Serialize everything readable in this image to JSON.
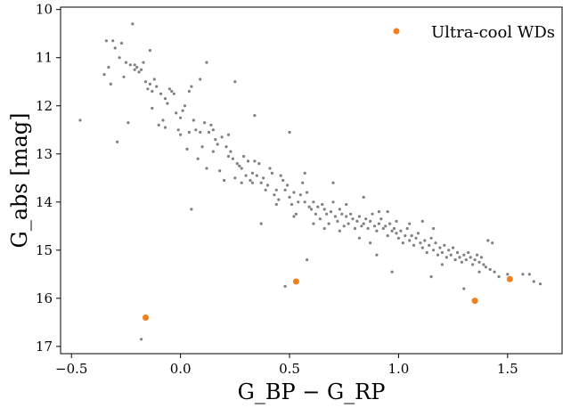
{
  "chart_data": {
    "type": "scatter",
    "title": "",
    "xlabel": "G_BP − G_RP",
    "ylabel": "G_abs [mag]",
    "xlim": [
      -0.55,
      1.75
    ],
    "ylim": [
      17.15,
      9.95
    ],
    "y_inverted": true,
    "x_ticks": [
      -0.5,
      0.0,
      0.5,
      1.0,
      1.5
    ],
    "x_tick_labels": [
      "−0.5",
      "0.0",
      "0.5",
      "1.0",
      "1.5"
    ],
    "y_ticks": [
      10,
      11,
      12,
      13,
      14,
      15,
      16,
      17
    ],
    "y_tick_labels": [
      "10",
      "11",
      "12",
      "13",
      "14",
      "15",
      "16",
      "17"
    ],
    "grid": false,
    "legend_position": "top-right",
    "series": [
      {
        "color": "#808080",
        "points": [
          [
            -0.46,
            12.3
          ],
          [
            -0.35,
            11.35
          ],
          [
            -0.34,
            10.65
          ],
          [
            -0.33,
            11.2
          ],
          [
            -0.32,
            11.55
          ],
          [
            -0.31,
            10.65
          ],
          [
            -0.3,
            10.8
          ],
          [
            -0.29,
            12.75
          ],
          [
            -0.28,
            11.0
          ],
          [
            -0.27,
            10.7
          ],
          [
            -0.26,
            11.4
          ],
          [
            -0.25,
            11.1
          ],
          [
            -0.24,
            12.35
          ],
          [
            -0.23,
            11.15
          ],
          [
            -0.22,
            10.3
          ],
          [
            -0.21,
            11.25
          ],
          [
            -0.2,
            11.2
          ],
          [
            -0.19,
            11.3
          ],
          [
            -0.18,
            11.25
          ],
          [
            -0.17,
            11.1
          ],
          [
            -0.16,
            11.5
          ],
          [
            -0.15,
            11.65
          ],
          [
            -0.14,
            11.55
          ],
          [
            -0.13,
            12.05
          ],
          [
            -0.12,
            11.45
          ],
          [
            -0.11,
            11.6
          ],
          [
            -0.1,
            12.4
          ],
          [
            -0.09,
            11.75
          ],
          [
            -0.08,
            12.3
          ],
          [
            -0.07,
            11.85
          ],
          [
            -0.06,
            11.95
          ],
          [
            -0.05,
            11.65
          ],
          [
            -0.04,
            11.7
          ],
          [
            -0.03,
            11.75
          ],
          [
            -0.02,
            12.15
          ],
          [
            -0.01,
            12.5
          ],
          [
            0.0,
            12.6
          ],
          [
            0.01,
            12.1
          ],
          [
            0.02,
            12.0
          ],
          [
            0.03,
            12.9
          ],
          [
            0.04,
            11.7
          ],
          [
            0.05,
            11.6
          ],
          [
            0.06,
            12.3
          ],
          [
            0.07,
            12.5
          ],
          [
            0.08,
            13.1
          ],
          [
            0.09,
            12.55
          ],
          [
            0.1,
            12.85
          ],
          [
            0.11,
            12.35
          ],
          [
            0.12,
            13.3
          ],
          [
            0.13,
            12.55
          ],
          [
            0.14,
            12.4
          ],
          [
            0.15,
            12.95
          ],
          [
            0.16,
            12.7
          ],
          [
            0.17,
            12.8
          ],
          [
            0.18,
            13.35
          ],
          [
            0.19,
            12.65
          ],
          [
            0.2,
            13.55
          ],
          [
            0.21,
            12.85
          ],
          [
            0.22,
            12.6
          ],
          [
            0.23,
            12.95
          ],
          [
            0.24,
            13.1
          ],
          [
            0.25,
            13.5
          ],
          [
            0.26,
            13.2
          ],
          [
            0.27,
            13.25
          ],
          [
            0.28,
            13.3
          ],
          [
            0.29,
            13.05
          ],
          [
            0.3,
            13.45
          ],
          [
            0.31,
            13.15
          ],
          [
            0.32,
            13.55
          ],
          [
            0.33,
            13.4
          ],
          [
            0.34,
            13.15
          ],
          [
            0.35,
            13.45
          ],
          [
            0.36,
            13.2
          ],
          [
            0.37,
            13.6
          ],
          [
            0.38,
            13.5
          ],
          [
            0.39,
            13.75
          ],
          [
            0.4,
            13.65
          ],
          [
            0.41,
            13.3
          ],
          [
            0.42,
            13.4
          ],
          [
            0.43,
            13.85
          ],
          [
            0.44,
            13.75
          ],
          [
            0.45,
            13.95
          ],
          [
            0.46,
            13.45
          ],
          [
            0.47,
            13.55
          ],
          [
            0.48,
            13.75
          ],
          [
            0.49,
            13.65
          ],
          [
            0.5,
            13.9
          ],
          [
            0.51,
            14.05
          ],
          [
            0.52,
            13.8
          ],
          [
            0.53,
            14.25
          ],
          [
            0.54,
            14.0
          ],
          [
            0.55,
            13.85
          ],
          [
            0.56,
            13.6
          ],
          [
            0.57,
            14.0
          ],
          [
            0.58,
            13.8
          ],
          [
            0.59,
            14.1
          ],
          [
            0.6,
            14.15
          ],
          [
            0.61,
            14.0
          ],
          [
            0.62,
            14.25
          ],
          [
            0.63,
            14.1
          ],
          [
            0.64,
            14.35
          ],
          [
            0.65,
            14.05
          ],
          [
            0.66,
            14.15
          ],
          [
            0.67,
            14.25
          ],
          [
            0.68,
            14.45
          ],
          [
            0.69,
            14.2
          ],
          [
            0.7,
            14.0
          ],
          [
            0.71,
            14.3
          ],
          [
            0.72,
            14.4
          ],
          [
            0.73,
            14.15
          ],
          [
            0.74,
            14.25
          ],
          [
            0.75,
            14.5
          ],
          [
            0.76,
            14.3
          ],
          [
            0.77,
            14.45
          ],
          [
            0.78,
            14.25
          ],
          [
            0.79,
            14.35
          ],
          [
            0.8,
            14.55
          ],
          [
            0.81,
            14.4
          ],
          [
            0.82,
            14.3
          ],
          [
            0.83,
            14.5
          ],
          [
            0.84,
            14.45
          ],
          [
            0.85,
            14.35
          ],
          [
            0.86,
            14.55
          ],
          [
            0.87,
            14.4
          ],
          [
            0.88,
            14.25
          ],
          [
            0.89,
            14.5
          ],
          [
            0.9,
            14.6
          ],
          [
            0.91,
            14.45
          ],
          [
            0.92,
            14.35
          ],
          [
            0.93,
            14.55
          ],
          [
            0.94,
            14.5
          ],
          [
            0.95,
            14.7
          ],
          [
            0.96,
            14.45
          ],
          [
            0.97,
            14.6
          ],
          [
            0.98,
            14.55
          ],
          [
            0.99,
            14.65
          ],
          [
            1.0,
            14.75
          ],
          [
            1.01,
            14.6
          ],
          [
            1.02,
            14.85
          ],
          [
            1.03,
            14.7
          ],
          [
            1.04,
            14.55
          ],
          [
            1.05,
            14.8
          ],
          [
            1.06,
            14.7
          ],
          [
            1.07,
            14.9
          ],
          [
            1.08,
            14.75
          ],
          [
            1.09,
            14.65
          ],
          [
            1.1,
            14.85
          ],
          [
            1.11,
            14.95
          ],
          [
            1.12,
            14.8
          ],
          [
            1.13,
            15.05
          ],
          [
            1.14,
            14.9
          ],
          [
            1.15,
            14.75
          ],
          [
            1.16,
            15.0
          ],
          [
            1.17,
            14.85
          ],
          [
            1.18,
            15.1
          ],
          [
            1.19,
            14.95
          ],
          [
            1.2,
            15.05
          ],
          [
            1.21,
            14.9
          ],
          [
            1.22,
            15.15
          ],
          [
            1.23,
            15.0
          ],
          [
            1.24,
            15.1
          ],
          [
            1.25,
            14.95
          ],
          [
            1.26,
            15.2
          ],
          [
            1.27,
            15.05
          ],
          [
            1.28,
            15.15
          ],
          [
            1.29,
            15.25
          ],
          [
            1.3,
            15.1
          ],
          [
            1.31,
            15.2
          ],
          [
            1.32,
            15.05
          ],
          [
            1.33,
            15.15
          ],
          [
            1.34,
            15.3
          ],
          [
            1.35,
            15.2
          ],
          [
            1.36,
            15.1
          ],
          [
            1.37,
            15.25
          ],
          [
            1.38,
            15.15
          ],
          [
            1.39,
            15.3
          ],
          [
            1.4,
            15.35
          ],
          [
            1.41,
            14.8
          ],
          [
            1.42,
            15.4
          ],
          [
            1.44,
            15.45
          ],
          [
            1.46,
            15.55
          ],
          [
            1.5,
            15.5
          ],
          [
            1.57,
            15.5
          ],
          [
            1.6,
            15.5
          ],
          [
            1.62,
            15.65
          ],
          [
            1.65,
            15.7
          ],
          [
            1.3,
            15.8
          ],
          [
            1.15,
            15.55
          ],
          [
            0.9,
            15.1
          ],
          [
            0.97,
            15.45
          ],
          [
            0.58,
            15.2
          ],
          [
            0.48,
            15.75
          ],
          [
            0.37,
            14.45
          ],
          [
            0.05,
            14.15
          ],
          [
            -0.18,
            16.85
          ],
          [
            0.09,
            11.45
          ],
          [
            0.25,
            11.5
          ],
          [
            -0.14,
            10.85
          ],
          [
            0.12,
            11.1
          ],
          [
            0.34,
            12.2
          ],
          [
            0.5,
            12.55
          ],
          [
            0.57,
            13.4
          ],
          [
            0.7,
            13.6
          ],
          [
            0.84,
            13.9
          ],
          [
            0.76,
            14.05
          ],
          [
            0.95,
            14.2
          ],
          [
            1.11,
            14.4
          ],
          [
            1.2,
            15.3
          ],
          [
            1.37,
            15.45
          ],
          [
            1.43,
            14.85
          ],
          [
            -0.21,
            11.15
          ],
          [
            -0.13,
            11.7
          ],
          [
            -0.07,
            12.45
          ],
          [
            0.0,
            12.25
          ],
          [
            0.04,
            12.55
          ],
          [
            0.15,
            12.5
          ],
          [
            0.22,
            13.05
          ],
          [
            0.28,
            13.6
          ],
          [
            0.33,
            13.6
          ],
          [
            0.44,
            14.05
          ],
          [
            0.52,
            14.3
          ],
          [
            0.61,
            14.45
          ],
          [
            0.66,
            14.55
          ],
          [
            0.73,
            14.6
          ],
          [
            0.82,
            14.75
          ],
          [
            0.87,
            14.85
          ],
          [
            0.91,
            14.2
          ],
          [
            0.99,
            14.4
          ],
          [
            1.05,
            14.45
          ],
          [
            1.16,
            14.55
          ]
        ]
      },
      {
        "name": "Ultra-cool WDs",
        "color": "#f07f1f",
        "points": [
          [
            -0.16,
            16.4
          ],
          [
            0.53,
            15.65
          ],
          [
            1.35,
            16.05
          ],
          [
            1.51,
            15.6
          ]
        ]
      }
    ]
  }
}
